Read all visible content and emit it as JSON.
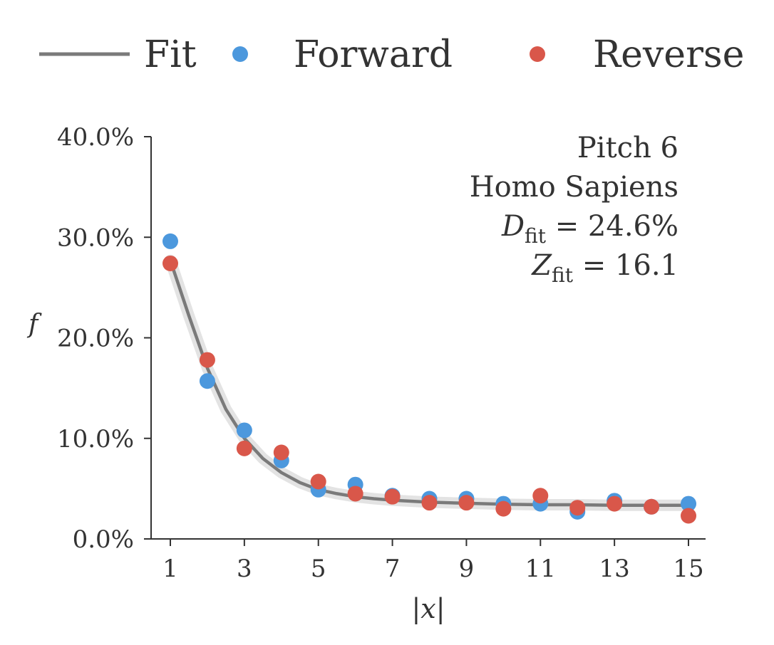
{
  "legend": {
    "fit_label": "Fit",
    "forward_label": "Forward",
    "reverse_label": "Reverse"
  },
  "annotation": {
    "line1": "Pitch 6",
    "line2": "Homo Sapiens",
    "d_symbol": "D",
    "d_subscript": "fit",
    "d_value": " = 24.6%",
    "z_symbol": "Z",
    "z_subscript": "fit",
    "z_value": " = 16.1"
  },
  "colors": {
    "forward": "#4c98dd",
    "reverse": "#d9574a",
    "fit": "#7a7a7a",
    "band": "#e3e3e3"
  },
  "chart_data": {
    "type": "scatter",
    "xlabel": "|x|",
    "ylabel": "f",
    "xlim": [
      1,
      15
    ],
    "ylim": [
      0,
      40
    ],
    "x_ticks": [
      1,
      3,
      5,
      7,
      9,
      11,
      13,
      15
    ],
    "x_tick_labels": [
      "1",
      "3",
      "5",
      "7",
      "9",
      "11",
      "13",
      "15"
    ],
    "y_ticks": [
      0,
      10,
      20,
      30,
      40
    ],
    "y_tick_labels": [
      "0.0%",
      "10.0%",
      "20.0%",
      "30.0%",
      "40.0%"
    ],
    "grid": false,
    "legend_position": "top",
    "series": [
      {
        "name": "Forward",
        "kind": "points",
        "x": [
          1,
          2,
          3,
          4,
          5,
          6,
          7,
          8,
          9,
          10,
          11,
          12,
          13,
          14,
          15
        ],
        "y": [
          29.6,
          15.7,
          10.8,
          7.8,
          4.9,
          5.4,
          4.3,
          4.0,
          4.0,
          3.5,
          3.5,
          2.7,
          3.8,
          3.2,
          3.5
        ]
      },
      {
        "name": "Reverse",
        "kind": "points",
        "x": [
          1,
          2,
          3,
          4,
          5,
          6,
          7,
          8,
          9,
          10,
          11,
          12,
          13,
          14,
          15
        ],
        "y": [
          27.4,
          17.8,
          9.0,
          8.6,
          5.7,
          4.5,
          4.2,
          3.6,
          3.6,
          3.0,
          4.3,
          3.1,
          3.5,
          3.2,
          2.3
        ]
      },
      {
        "name": "Fit",
        "kind": "line",
        "x": [
          1,
          1.5,
          2,
          2.5,
          3,
          3.5,
          4,
          4.5,
          5,
          5.5,
          6,
          6.5,
          7,
          8,
          9,
          10,
          11,
          12,
          13,
          14,
          15
        ],
        "y": [
          27.7,
          22.2,
          17.0,
          12.9,
          10.0,
          8.0,
          6.6,
          5.6,
          4.9,
          4.5,
          4.2,
          4.0,
          3.85,
          3.65,
          3.55,
          3.45,
          3.4,
          3.4,
          3.35,
          3.35,
          3.35
        ]
      }
    ]
  }
}
